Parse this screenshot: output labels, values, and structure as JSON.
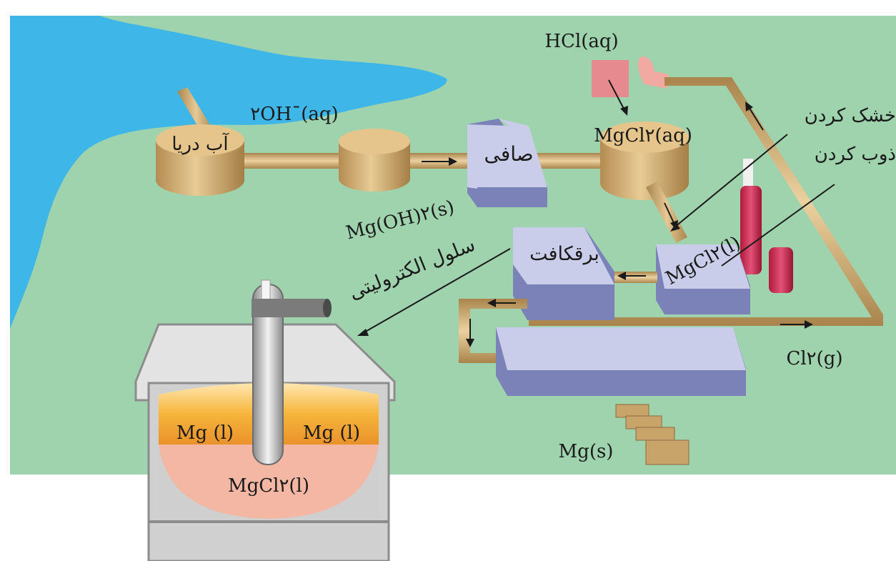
{
  "labels": {
    "hcl_aq": "HCl(aq)",
    "hydroxide": "۲OH¯(aq)",
    "seawater": "آب دریا",
    "filter": "صافی",
    "mg_oh2": "Mg(OH)۲(s)",
    "mgcl2_aq": "MgCl۲(aq)",
    "drying": "خشک کردن",
    "melting": "ذوب کردن",
    "mgcl2_l": "MgCl۲(l)",
    "electrolysis": "برقکافت",
    "cell": "سلول الکترولیتی",
    "cl2_g": "Cl۲(g)",
    "mg_s": "Mg(s)",
    "cell_mg_left": "Mg (l)",
    "cell_mg_right": "Mg (l)",
    "cell_mgcl2": "MgCl۲(l)"
  },
  "colors": {
    "land": "#9fd3ad",
    "sea": "#3fb6e8",
    "pipe": "#c8a46a",
    "tank": "#d6b27a",
    "box_front": "#c9cdea",
    "box_side": "#7a82b8",
    "hcl": "#e68a8f",
    "cell_body": "#d8d8d8",
    "molten_mg": "#f3b13d",
    "mgcl2_melt": "#f3b7a4",
    "arrow": "#1a1a1a"
  }
}
